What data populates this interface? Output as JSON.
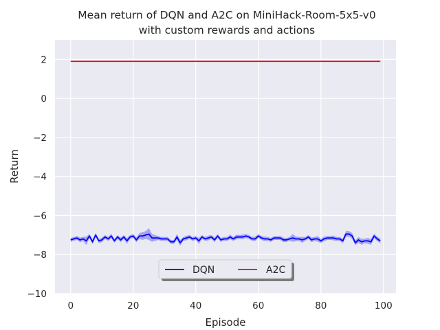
{
  "chart_data": {
    "type": "line",
    "title_line1": "Mean return of DQN and A2C on MiniHack-Room-5x5-v0",
    "title_line2": "with custom rewards and actions",
    "xlabel": "Episode",
    "ylabel": "Return",
    "xlim": [
      -5,
      104
    ],
    "ylim": [
      -10,
      3
    ],
    "xticks": [
      0,
      20,
      40,
      60,
      80,
      100
    ],
    "yticks": [
      -10,
      -8,
      -6,
      -4,
      -2,
      0,
      2
    ],
    "grid": true,
    "legend": {
      "placement": "lower-center",
      "columns": 2
    },
    "series": [
      {
        "name": "DQN",
        "color": "#0000ff",
        "band_color": "#6e6ef0",
        "x_start": 0,
        "x_step": 1,
        "values": [
          -7.25,
          -7.2,
          -7.15,
          -7.25,
          -7.2,
          -7.3,
          -7.05,
          -7.35,
          -7.0,
          -7.3,
          -7.25,
          -7.1,
          -7.2,
          -7.05,
          -7.3,
          -7.1,
          -7.25,
          -7.1,
          -7.3,
          -7.1,
          -7.05,
          -7.25,
          -7.05,
          -7.05,
          -7.0,
          -6.95,
          -7.15,
          -7.15,
          -7.15,
          -7.2,
          -7.2,
          -7.2,
          -7.35,
          -7.35,
          -7.1,
          -7.4,
          -7.2,
          -7.15,
          -7.1,
          -7.2,
          -7.15,
          -7.3,
          -7.1,
          -7.2,
          -7.15,
          -7.1,
          -7.25,
          -7.05,
          -7.25,
          -7.2,
          -7.2,
          -7.1,
          -7.2,
          -7.1,
          -7.1,
          -7.1,
          -7.05,
          -7.1,
          -7.2,
          -7.2,
          -7.05,
          -7.15,
          -7.2,
          -7.2,
          -7.25,
          -7.15,
          -7.15,
          -7.15,
          -7.25,
          -7.25,
          -7.2,
          -7.15,
          -7.2,
          -7.2,
          -7.25,
          -7.2,
          -7.1,
          -7.25,
          -7.2,
          -7.2,
          -7.3,
          -7.2,
          -7.15,
          -7.15,
          -7.15,
          -7.2,
          -7.2,
          -7.3,
          -6.95,
          -6.95,
          -7.05,
          -7.4,
          -7.25,
          -7.35,
          -7.3,
          -7.3,
          -7.35,
          -7.05,
          -7.2,
          -7.3
        ],
        "band_halfwidth": [
          0.1,
          0.1,
          0.1,
          0.12,
          0.1,
          0.22,
          0.1,
          0.12,
          0.1,
          0.1,
          0.12,
          0.1,
          0.1,
          0.12,
          0.1,
          0.1,
          0.12,
          0.1,
          0.15,
          0.1,
          0.1,
          0.12,
          0.15,
          0.2,
          0.2,
          0.3,
          0.2,
          0.15,
          0.1,
          0.1,
          0.1,
          0.1,
          0.1,
          0.1,
          0.15,
          0.15,
          0.1,
          0.12,
          0.1,
          0.1,
          0.1,
          0.15,
          0.1,
          0.1,
          0.12,
          0.1,
          0.12,
          0.1,
          0.1,
          0.1,
          0.1,
          0.12,
          0.1,
          0.12,
          0.1,
          0.12,
          0.1,
          0.1,
          0.1,
          0.12,
          0.1,
          0.1,
          0.12,
          0.1,
          0.1,
          0.1,
          0.1,
          0.1,
          0.12,
          0.1,
          0.1,
          0.2,
          0.12,
          0.1,
          0.15,
          0.1,
          0.1,
          0.12,
          0.1,
          0.15,
          0.1,
          0.12,
          0.1,
          0.1,
          0.12,
          0.1,
          0.1,
          0.12,
          0.15,
          0.15,
          0.15,
          0.12,
          0.15,
          0.15,
          0.12,
          0.15,
          0.15,
          0.12,
          0.12,
          0.12
        ]
      },
      {
        "name": "A2C",
        "color": "#ff0000",
        "x_start": 0,
        "x_step": 1,
        "values": [
          1.9,
          1.9,
          1.9,
          1.9,
          1.9,
          1.9,
          1.9,
          1.9,
          1.9,
          1.9,
          1.9,
          1.9,
          1.9,
          1.9,
          1.9,
          1.9,
          1.9,
          1.9,
          1.9,
          1.9,
          1.9,
          1.9,
          1.9,
          1.9,
          1.9,
          1.9,
          1.9,
          1.9,
          1.9,
          1.9,
          1.9,
          1.9,
          1.9,
          1.9,
          1.9,
          1.9,
          1.9,
          1.9,
          1.9,
          1.9,
          1.9,
          1.9,
          1.9,
          1.9,
          1.9,
          1.9,
          1.9,
          1.9,
          1.9,
          1.9,
          1.9,
          1.9,
          1.9,
          1.9,
          1.9,
          1.9,
          1.9,
          1.9,
          1.9,
          1.9,
          1.9,
          1.9,
          1.9,
          1.9,
          1.9,
          1.9,
          1.9,
          1.9,
          1.9,
          1.9,
          1.9,
          1.9,
          1.9,
          1.9,
          1.9,
          1.9,
          1.9,
          1.9,
          1.9,
          1.9,
          1.9,
          1.9,
          1.9,
          1.9,
          1.9,
          1.9,
          1.9,
          1.9,
          1.9,
          1.9,
          1.9,
          1.9,
          1.9,
          1.9,
          1.9,
          1.9,
          1.9,
          1.9,
          1.9,
          1.9
        ]
      }
    ]
  }
}
